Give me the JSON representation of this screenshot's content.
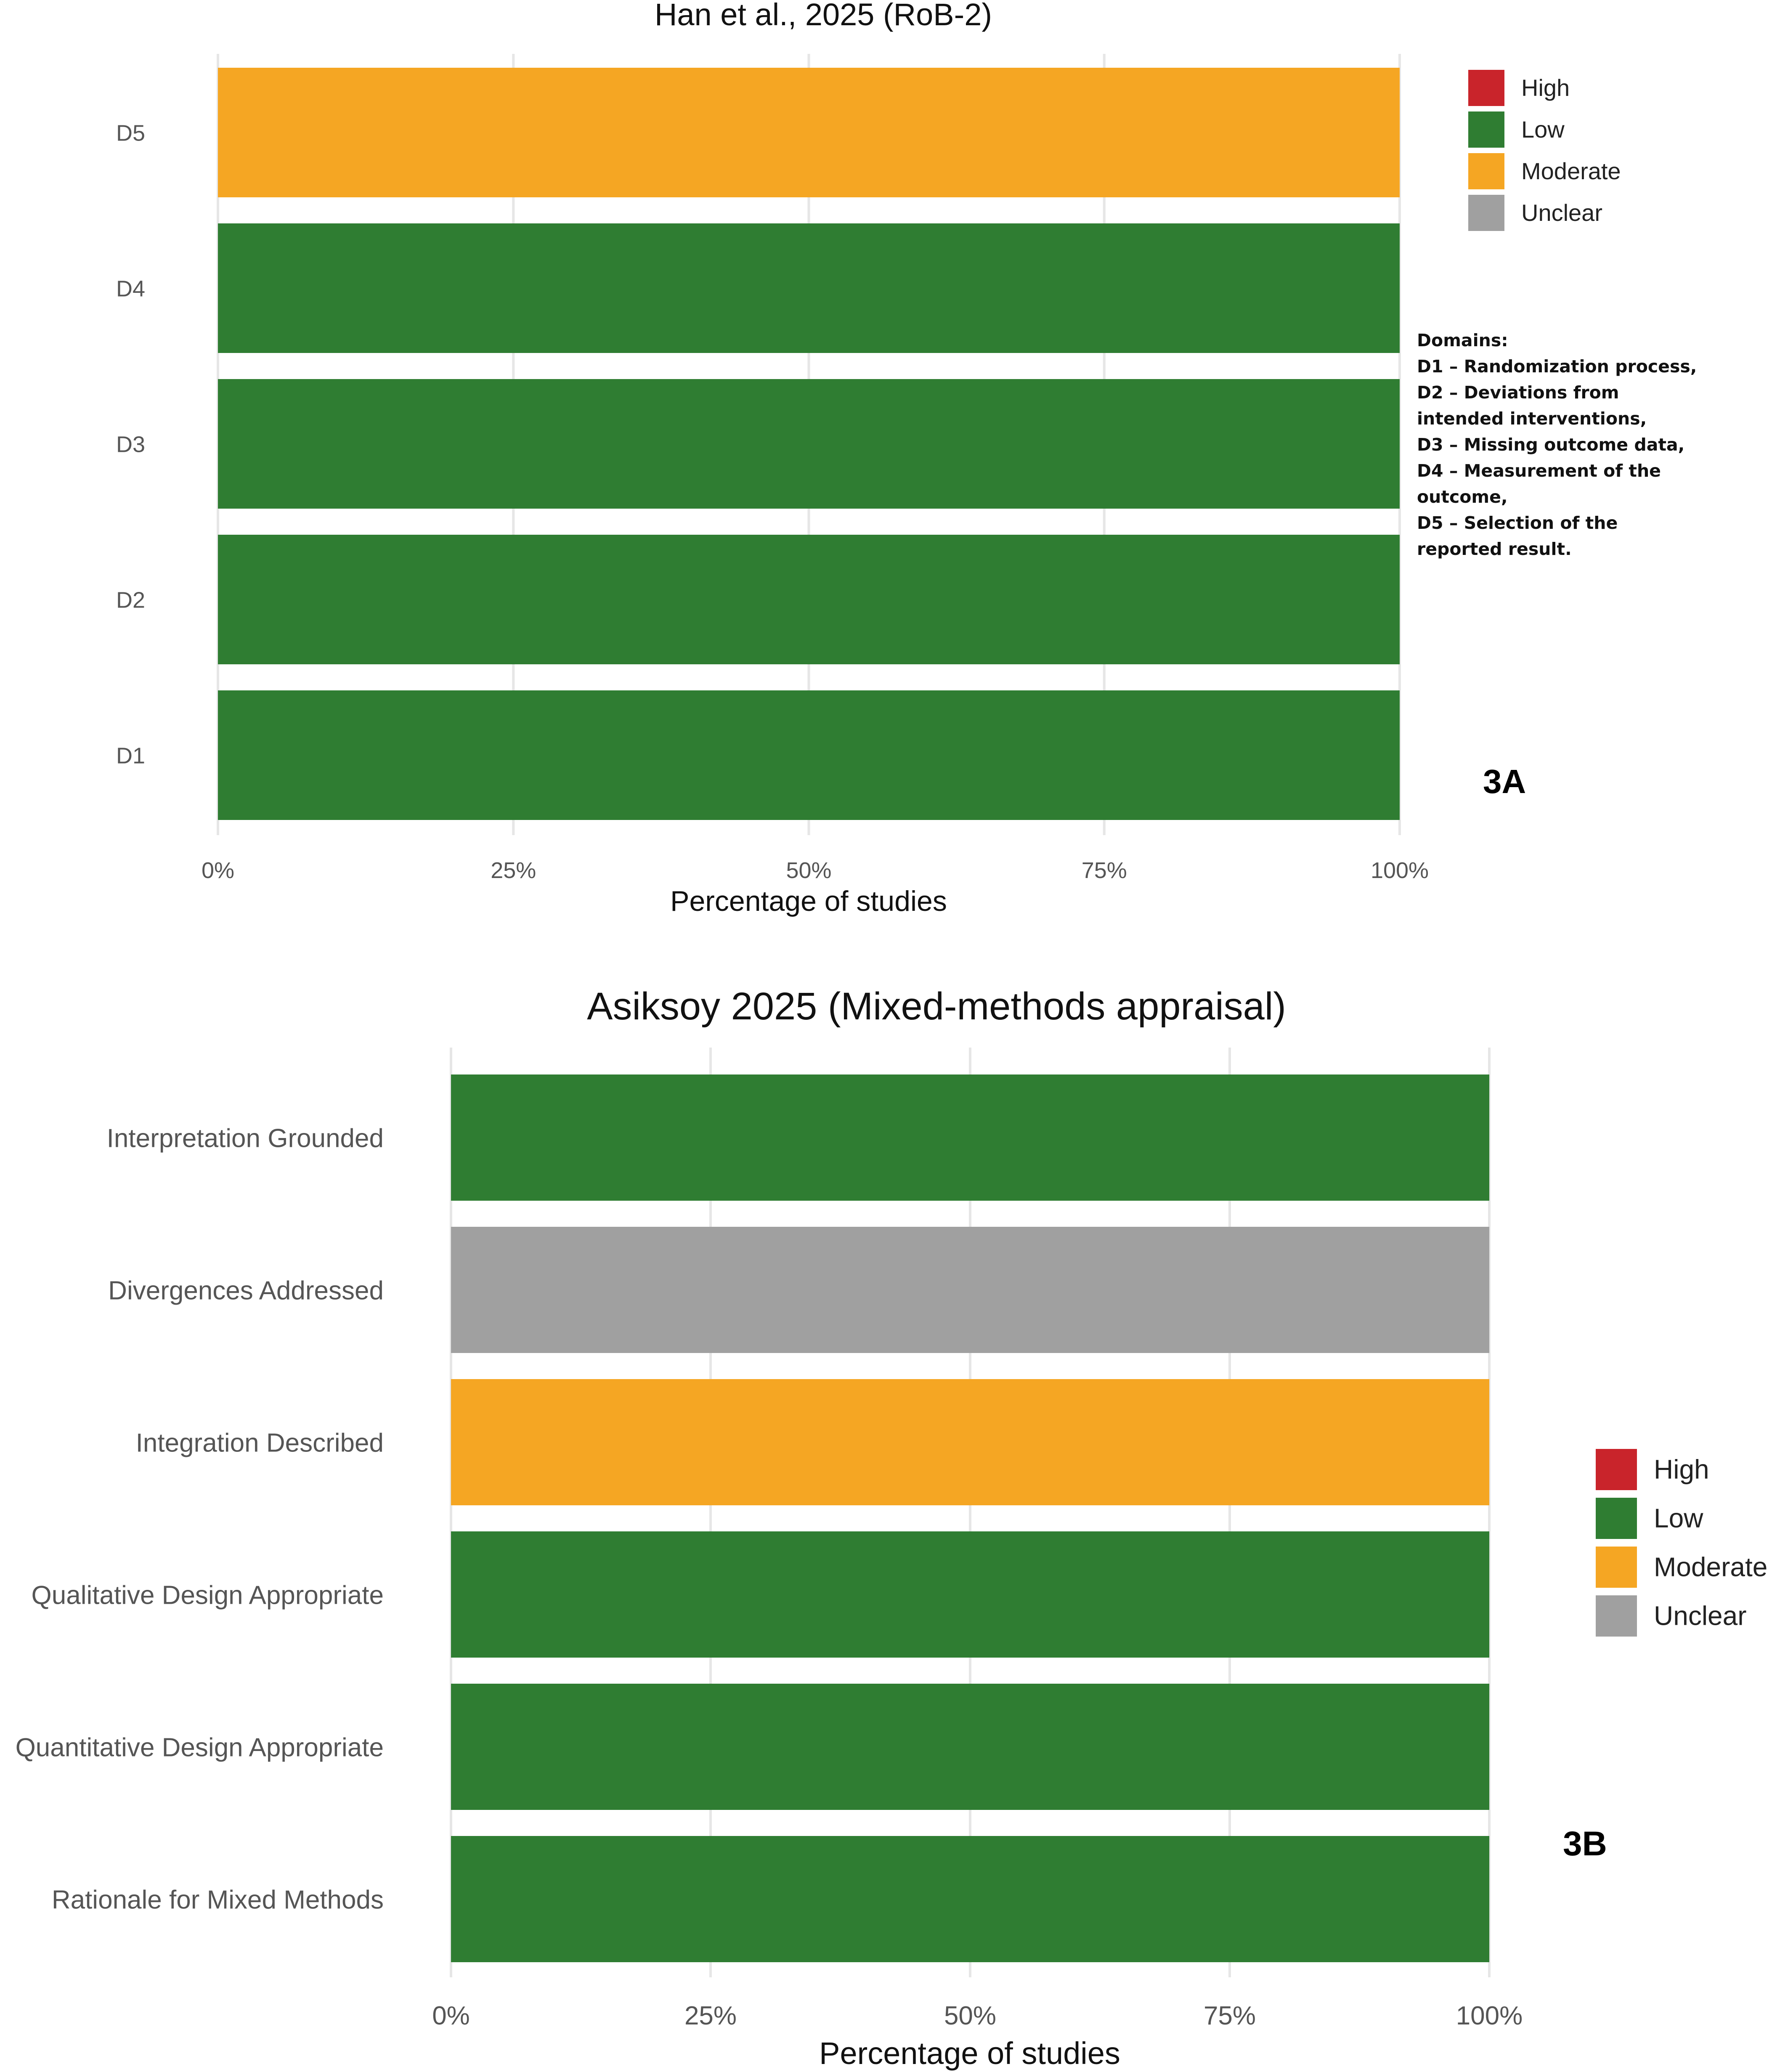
{
  "colors": {
    "High": "#c9242b",
    "Low": "#2f7d32",
    "Moderate": "#f5a623",
    "Unclear": "#a0a0a0",
    "grid": "#e6e6e6",
    "text": "#222222",
    "tick": "#555555"
  },
  "chart_data": [
    {
      "panel": "3A",
      "type": "bar",
      "orientation": "horizontal",
      "stacked": true,
      "title": "Han et al., 2025 (RoB-2)",
      "xlabel": "Percentage of studies",
      "ylabel": "",
      "xlim": [
        0,
        100
      ],
      "xticks": [
        "0%",
        "25%",
        "50%",
        "75%",
        "100%"
      ],
      "grid": true,
      "categories": [
        "D5",
        "D4",
        "D3",
        "D2",
        "D1"
      ],
      "series": [
        {
          "name": "High",
          "values": [
            0,
            0,
            0,
            0,
            0
          ]
        },
        {
          "name": "Low",
          "values": [
            0,
            100,
            100,
            100,
            100
          ]
        },
        {
          "name": "Moderate",
          "values": [
            100,
            0,
            0,
            0,
            0
          ]
        },
        {
          "name": "Unclear",
          "values": [
            0,
            0,
            0,
            0,
            0
          ]
        }
      ],
      "legend": [
        "High",
        "Low",
        "Moderate",
        "Unclear"
      ],
      "legend_position": "top-right",
      "panel_label": "3A",
      "notes": [
        "Domains:",
        "D1 – Randomization process,",
        "D2 – Deviations from",
        "intended interventions,",
        "D3 – Missing outcome data,",
        "D4 – Measurement of the",
        "outcome,",
        "D5 – Selection of the",
        "reported result."
      ]
    },
    {
      "panel": "3B",
      "type": "bar",
      "orientation": "horizontal",
      "stacked": true,
      "title": "Asiksoy 2025 (Mixed-methods appraisal)",
      "xlabel": "Percentage of studies",
      "ylabel": "",
      "xlim": [
        0,
        100
      ],
      "xticks": [
        "0%",
        "25%",
        "50%",
        "75%",
        "100%"
      ],
      "grid": true,
      "categories": [
        "Interpretation Grounded",
        "Divergences Addressed",
        "Integration Described",
        "Qualitative Design Appropriate",
        "Quantitative Design Appropriate",
        "Rationale for Mixed Methods"
      ],
      "series": [
        {
          "name": "High",
          "values": [
            0,
            0,
            0,
            0,
            0,
            0
          ]
        },
        {
          "name": "Low",
          "values": [
            100,
            0,
            0,
            100,
            100,
            100
          ]
        },
        {
          "name": "Moderate",
          "values": [
            0,
            0,
            100,
            0,
            0,
            0
          ]
        },
        {
          "name": "Unclear",
          "values": [
            0,
            100,
            0,
            0,
            0,
            0
          ]
        }
      ],
      "legend": [
        "High",
        "Low",
        "Moderate",
        "Unclear"
      ],
      "legend_position": "right",
      "panel_label": "3B"
    }
  ]
}
